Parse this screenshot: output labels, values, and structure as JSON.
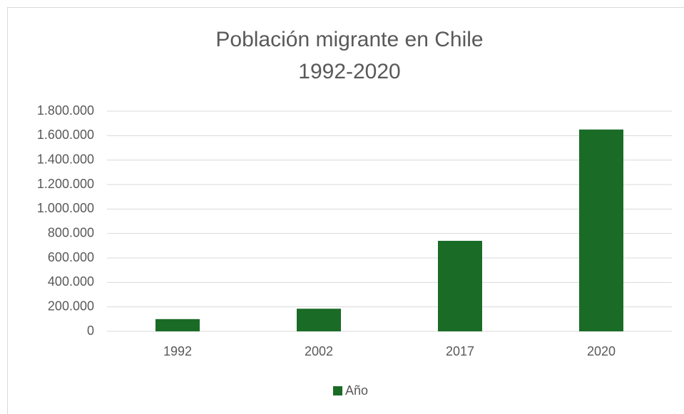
{
  "chart_data": {
    "type": "bar",
    "title": "Población migrante en Chile",
    "subtitle": "1992-2020",
    "categories": [
      "1992",
      "2002",
      "2017",
      "2020"
    ],
    "series": [
      {
        "name": "Año",
        "color": "#1a6b26",
        "values": [
          100000,
          185000,
          740000,
          1650000
        ]
      }
    ],
    "ylim": [
      0,
      1800000
    ],
    "yticks": [
      0,
      {
        "value": 200000,
        "label": "200.000"
      },
      {
        "value": 400000,
        "label": "400.000"
      },
      {
        "value": 600000,
        "label": "600.000"
      },
      {
        "value": 800000,
        "label": "800.000"
      },
      {
        "value": 1000000,
        "label": "1.000.000"
      },
      {
        "value": 1200000,
        "label": "1.200.000"
      },
      {
        "value": 1400000,
        "label": "1.400.000"
      },
      {
        "value": 1600000,
        "label": "1.600.000"
      },
      {
        "value": 1800000,
        "label": "1.800.000"
      }
    ],
    "grid": true,
    "legend": "bottom"
  }
}
